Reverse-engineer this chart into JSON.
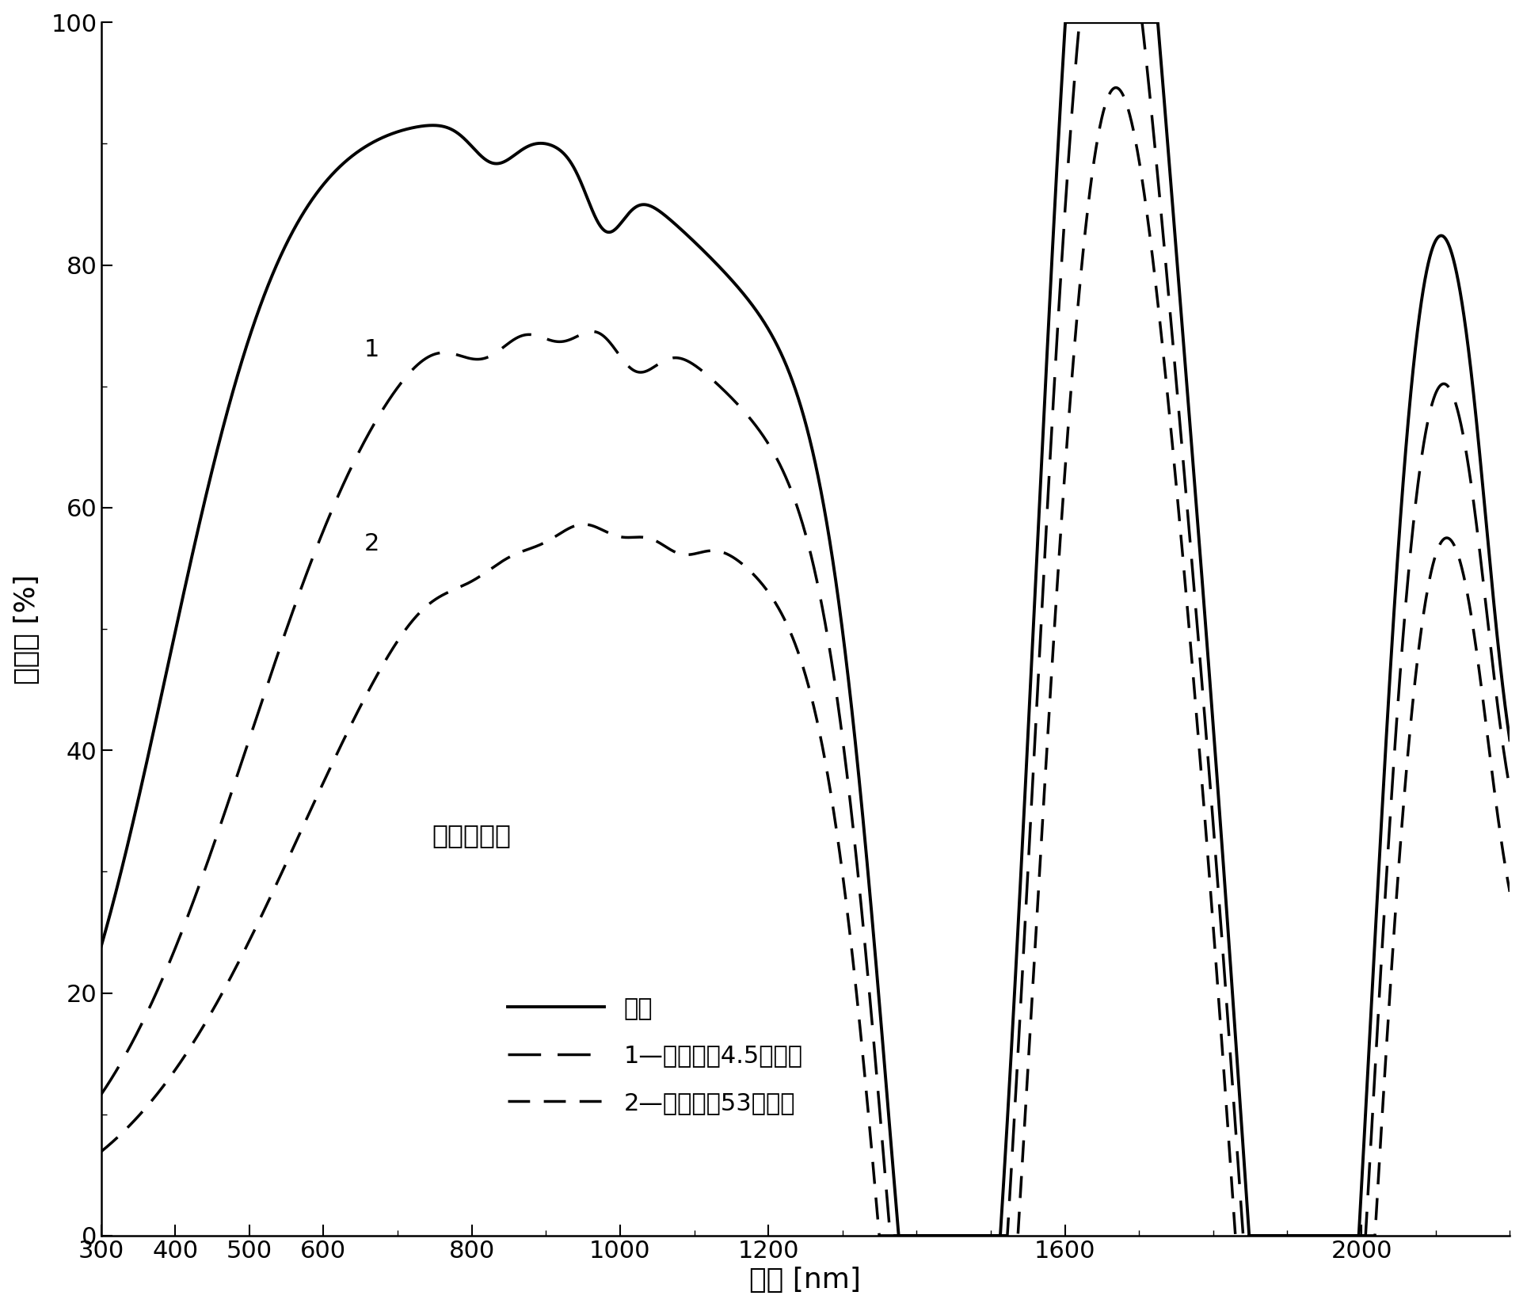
{
  "xlabel": "波长 [nm]",
  "ylabel": "透射率 [%]",
  "annotation": "角膜透射率",
  "legend_solid": "总的",
  "legend_dash1": "直接地，4.5年年龄",
  "legend_dash2": "直接地，53年年龄",
  "label1": "1",
  "label2": "2",
  "xlim": [
    300,
    2200
  ],
  "ylim": [
    0,
    100
  ],
  "yticks": [
    0,
    20,
    40,
    60,
    80,
    100
  ],
  "background_color": "#ffffff",
  "line_color": "#000000",
  "fontsize_label": 26,
  "fontsize_tick": 22,
  "fontsize_legend": 22,
  "fontsize_annotation": 24,
  "fontsize_curve_label": 22
}
